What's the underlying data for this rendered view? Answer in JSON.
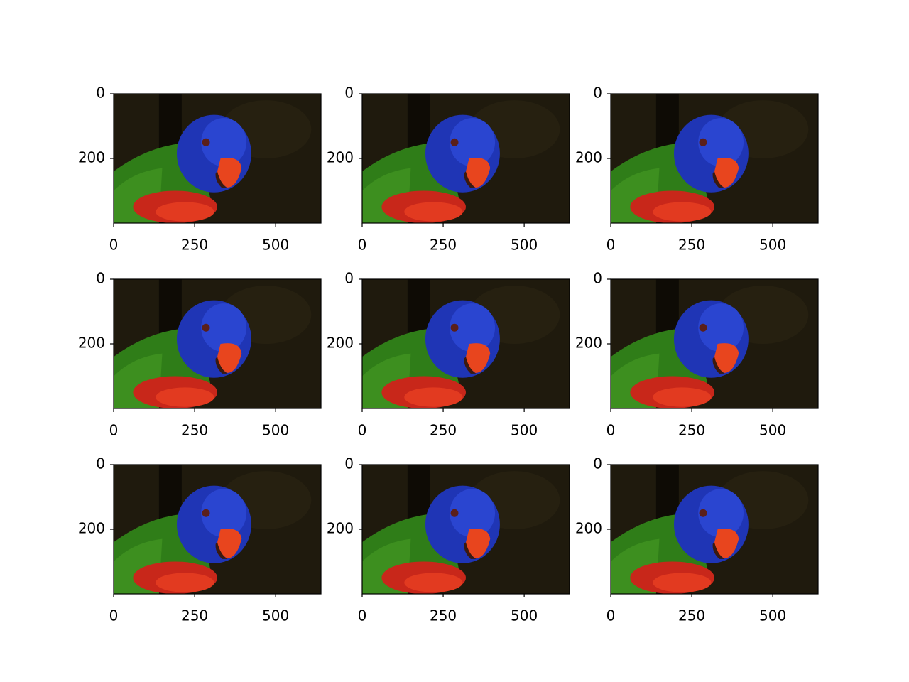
{
  "chart_data": [
    {
      "type": "image",
      "xlim": [
        0,
        640
      ],
      "ylim": [
        400,
        0
      ],
      "xticks": [
        0,
        250,
        500
      ],
      "yticks": [
        0,
        200
      ]
    },
    {
      "type": "image",
      "xlim": [
        0,
        640
      ],
      "ylim": [
        400,
        0
      ],
      "xticks": [
        0,
        250,
        500
      ],
      "yticks": [
        0,
        200
      ]
    },
    {
      "type": "image",
      "xlim": [
        0,
        640
      ],
      "ylim": [
        400,
        0
      ],
      "xticks": [
        0,
        250,
        500
      ],
      "yticks": [
        0,
        200
      ]
    },
    {
      "type": "image",
      "xlim": [
        0,
        640
      ],
      "ylim": [
        400,
        0
      ],
      "xticks": [
        0,
        250,
        500
      ],
      "yticks": [
        0,
        200
      ]
    },
    {
      "type": "image",
      "xlim": [
        0,
        640
      ],
      "ylim": [
        400,
        0
      ],
      "xticks": [
        0,
        250,
        500
      ],
      "yticks": [
        0,
        200
      ]
    },
    {
      "type": "image",
      "xlim": [
        0,
        640
      ],
      "ylim": [
        400,
        0
      ],
      "xticks": [
        0,
        250,
        500
      ],
      "yticks": [
        0,
        200
      ]
    },
    {
      "type": "image",
      "xlim": [
        0,
        640
      ],
      "ylim": [
        400,
        0
      ],
      "xticks": [
        0,
        250,
        500
      ],
      "yticks": [
        0,
        200
      ]
    },
    {
      "type": "image",
      "xlim": [
        0,
        640
      ],
      "ylim": [
        400,
        0
      ],
      "xticks": [
        0,
        250,
        500
      ],
      "yticks": [
        0,
        200
      ]
    },
    {
      "type": "image",
      "xlim": [
        0,
        640
      ],
      "ylim": [
        400,
        0
      ],
      "xticks": [
        0,
        250,
        500
      ],
      "yticks": [
        0,
        200
      ]
    }
  ]
}
